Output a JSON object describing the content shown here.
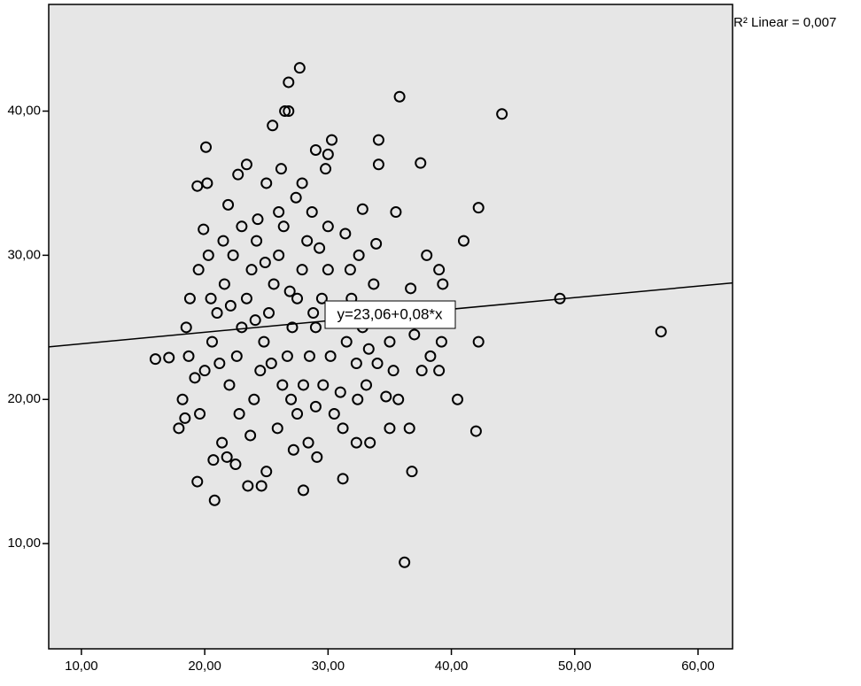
{
  "chart_data": {
    "type": "scatter",
    "fit_label": "y=23,06+0,08*x",
    "r2_label": "R² Linear = 0,007",
    "regression": {
      "intercept": 23.06,
      "slope": 0.08
    },
    "series": [
      {
        "color": "#000000",
        "x": [
          27.7,
          26.8,
          35.8,
          44.1,
          26.5,
          26.8,
          25.5,
          20.1,
          29,
          30.3,
          34.1,
          37.5,
          34.1,
          23.4,
          42.2,
          41,
          48.8,
          57,
          16,
          17.1,
          40.5,
          42,
          36.2,
          36.8,
          31.2,
          20.8,
          19.4,
          28,
          24.6,
          23.5,
          42.2,
          39.2,
          39,
          37.6,
          39,
          39.3,
          38,
          36.7,
          36.6,
          35,
          35.7,
          33.4,
          32.3,
          26.2,
          29.8,
          30,
          19.4,
          20.2,
          22.7,
          25,
          27.9,
          32.8,
          35.5,
          18.2,
          17.9,
          18.4,
          19.6,
          20.7,
          21.4,
          21.8,
          22.5,
          25,
          27.2,
          28.4,
          29.1,
          30.5,
          31.2,
          32.4,
          33.1,
          34,
          35,
          34.4,
          33.7,
          32.5,
          31.4,
          30,
          28.7,
          27.4,
          26,
          24.3,
          23,
          21.5,
          20.3,
          19.5,
          18.8,
          18.5,
          18.7,
          19.2,
          20,
          20.6,
          21,
          21.6,
          22.3,
          22,
          22.6,
          23,
          23.4,
          23.8,
          24.2,
          24,
          24.5,
          24.8,
          25.2,
          25.6,
          26,
          26.4,
          25.9,
          26.3,
          26.7,
          27.1,
          27.5,
          27.9,
          28.3,
          27.5,
          28,
          28.5,
          29,
          29.5,
          30,
          30.6,
          30.2,
          29.6,
          29,
          31.5,
          31.9,
          32.3,
          32.8,
          33.3,
          31,
          23.7,
          22.8,
          21.2,
          20.5,
          24.9,
          26.9,
          28.8,
          25.4,
          27,
          24.1,
          22.1,
          29.3,
          31.8,
          33.9,
          35.3,
          34.7,
          37,
          36,
          21.9,
          19.9,
          38.3
        ],
        "values": [
          43,
          42,
          41,
          39.8,
          40,
          40,
          39,
          37.5,
          37.3,
          38,
          38,
          36.4,
          36.3,
          36.3,
          33.3,
          31,
          27,
          24.7,
          22.8,
          22.9,
          20,
          17.8,
          8.7,
          15,
          14.5,
          13,
          14.3,
          13.7,
          14,
          14,
          24,
          24,
          22,
          22,
          29,
          28,
          30,
          27.7,
          18,
          18,
          20,
          17,
          17,
          36,
          36,
          37,
          34.8,
          35,
          35.6,
          35,
          35,
          33.2,
          33,
          20,
          18,
          18.7,
          19,
          15.8,
          17,
          16,
          15.5,
          15,
          16.5,
          17,
          16,
          19,
          18,
          20,
          21,
          22.5,
          24,
          26,
          28,
          30,
          31.5,
          32,
          33,
          34,
          33,
          32.5,
          32,
          31,
          30,
          29,
          27,
          25,
          23,
          21.5,
          22,
          24,
          26,
          28,
          30,
          21,
          23,
          25,
          27,
          29,
          31,
          20,
          22,
          24,
          26,
          28,
          30,
          32,
          18,
          21,
          23,
          25,
          27,
          29,
          31,
          19,
          21,
          23,
          25,
          27,
          29,
          26,
          23,
          21,
          19.5,
          24,
          27,
          22.5,
          25,
          23.5,
          20.5,
          17.5,
          19,
          22.5,
          27,
          29.5,
          27.5,
          26,
          22.5,
          20,
          25.5,
          26.5,
          30.5,
          29,
          30.8,
          22,
          20.2,
          24.5,
          25.5,
          33.5,
          31.8,
          23
        ]
      }
    ],
    "xlim": [
      7.35,
      62.8
    ],
    "ylim": [
      2.7,
      47.4
    ],
    "xticks": [
      {
        "value": 10,
        "label": "10,00"
      },
      {
        "value": 20,
        "label": "20,00"
      },
      {
        "value": 30,
        "label": "30,00"
      },
      {
        "value": 40,
        "label": "40,00"
      },
      {
        "value": 50,
        "label": "50,00"
      },
      {
        "value": 60,
        "label": "60,00"
      }
    ],
    "yticks": [
      {
        "value": 10,
        "label": "10,00"
      },
      {
        "value": 20,
        "label": "20,00"
      },
      {
        "value": 30,
        "label": "30,00"
      },
      {
        "value": 40,
        "label": "40,00"
      }
    ],
    "background": "#e6e6e6"
  }
}
